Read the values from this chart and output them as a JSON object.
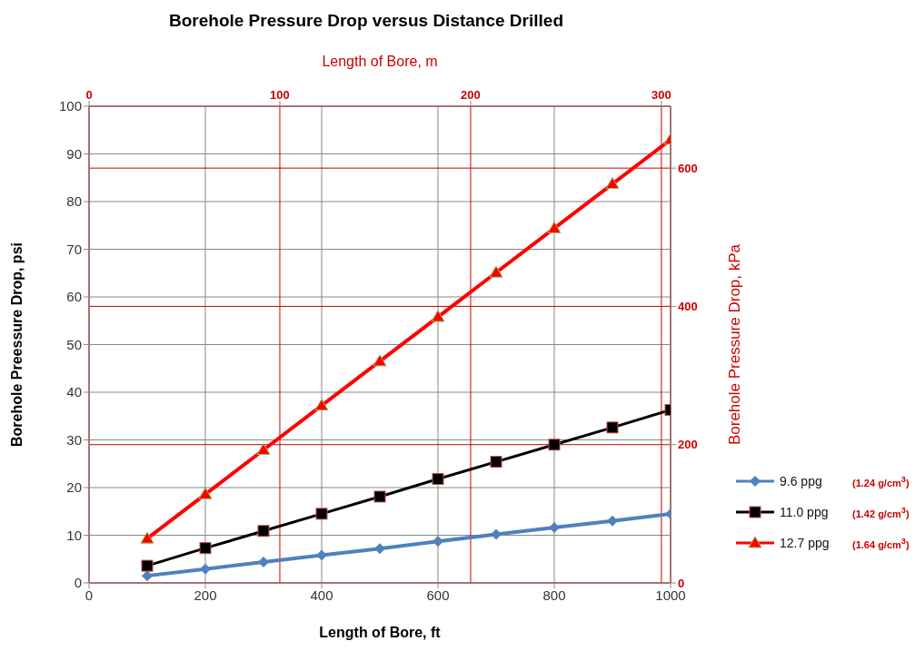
{
  "chart_data": {
    "type": "line",
    "title": "Borehole Pressure Drop versus Distance Drilled",
    "xlabel": "Length of Bore, ft",
    "ylabel": "Borehole Preessure Drop, psi",
    "x2label": "Length of Bore, m",
    "y2label": "Borehole Pressure Drop, kPa",
    "x": [
      100,
      200,
      300,
      400,
      500,
      600,
      700,
      800,
      900,
      1000
    ],
    "series": [
      {
        "name": "9.6 ppg",
        "color": "#4f81bd",
        "marker": "diamond",
        "values": [
          1.5,
          2.9,
          4.4,
          5.8,
          7.2,
          8.7,
          10.2,
          11.6,
          13.0,
          14.5
        ]
      },
      {
        "name": "11.0 ppg",
        "color": "#000000",
        "marker": "square",
        "values": [
          3.6,
          7.3,
          10.9,
          14.5,
          18.1,
          21.8,
          25.4,
          29.0,
          32.6,
          36.3
        ]
      },
      {
        "name": "12.7 ppg",
        "color": "#ff0000",
        "marker": "triangle",
        "values": [
          9.3,
          18.6,
          27.9,
          37.2,
          46.5,
          55.8,
          65.1,
          74.4,
          83.7,
          93.0
        ]
      }
    ],
    "annotations": [
      "(1.24 g/cm$^{3}$)",
      "(1.42 g/cm$^{3}$)",
      "(1.64 g/cm$^{3}$)"
    ],
    "xlim": [
      0,
      1000
    ],
    "xticks": [
      0,
      200,
      400,
      600,
      800,
      1000
    ],
    "ylim": [
      0,
      100
    ],
    "yticks": [
      0,
      10,
      20,
      30,
      40,
      50,
      60,
      70,
      80,
      90,
      100
    ],
    "x2lim": [
      0,
      304.8
    ],
    "x2ticks": [
      0,
      100,
      200,
      300
    ],
    "y2lim": [
      0,
      689.5
    ],
    "y2ticks": [
      0,
      200,
      400,
      600
    ],
    "grid": true,
    "legend": "right",
    "line_style": "solid"
  }
}
